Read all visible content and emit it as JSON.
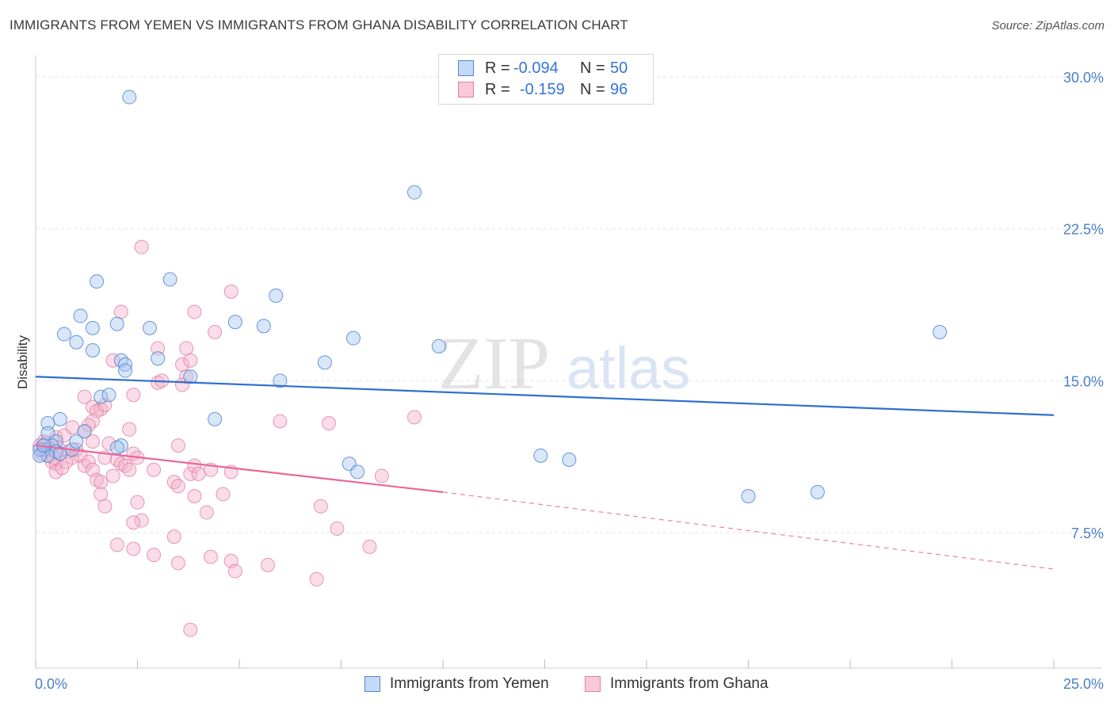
{
  "title": "IMMIGRANTS FROM YEMEN VS IMMIGRANTS FROM GHANA DISABILITY CORRELATION CHART",
  "source": "Source: ZipAtlas.com",
  "watermark": {
    "zip": "ZIP",
    "atlas": "atlas"
  },
  "legend": {
    "rows": [
      {
        "r_label": "R =",
        "r_value": "-0.094",
        "n_label": "N =",
        "n_value": "50"
      },
      {
        "r_label": "R =",
        "r_value": "-0.159",
        "n_label": "N =",
        "n_value": "96"
      }
    ]
  },
  "colors": {
    "yemen_fill": "#a9c8f0",
    "yemen_stroke": "#4f86d2",
    "yemen_line": "#2f6fd0",
    "ghana_fill": "#f5b3cb",
    "ghana_stroke": "#e07ea3",
    "ghana_line": "#e8679a",
    "grid": "#e3e3e3",
    "tick_text": "#4a7fc9"
  },
  "chart_data": {
    "type": "scatter",
    "title": "IMMIGRANTS FROM YEMEN VS IMMIGRANTS FROM GHANA DISABILITY CORRELATION CHART",
    "xlabel": "",
    "ylabel": "Disability",
    "xlim": [
      0,
      25
    ],
    "ylim": [
      0,
      31
    ],
    "x_tick_labels": [
      "0.0%",
      "25.0%"
    ],
    "y_ticks": [
      7.5,
      15.0,
      22.5,
      30.0
    ],
    "y_tick_labels": [
      "7.5%",
      "15.0%",
      "22.5%",
      "30.0%"
    ],
    "grid": true,
    "series": [
      {
        "name": "Immigrants from Yemen",
        "r": -0.094,
        "n": 50,
        "trend": {
          "x0": 0,
          "y0": 15.2,
          "x1": 25,
          "y1": 13.3
        },
        "points": [
          [
            2.3,
            29.0
          ],
          [
            9.3,
            24.3
          ],
          [
            1.5,
            19.9
          ],
          [
            3.3,
            20.0
          ],
          [
            5.9,
            19.2
          ],
          [
            1.1,
            18.2
          ],
          [
            2.0,
            17.8
          ],
          [
            2.8,
            17.6
          ],
          [
            4.9,
            17.9
          ],
          [
            5.6,
            17.7
          ],
          [
            0.7,
            17.3
          ],
          [
            1.4,
            17.6
          ],
          [
            1.0,
            16.9
          ],
          [
            7.8,
            17.1
          ],
          [
            9.9,
            16.7
          ],
          [
            1.4,
            16.5
          ],
          [
            2.1,
            16.0
          ],
          [
            2.2,
            15.8
          ],
          [
            3.0,
            16.1
          ],
          [
            7.1,
            15.9
          ],
          [
            2.2,
            15.5
          ],
          [
            3.8,
            15.2
          ],
          [
            6.0,
            15.0
          ],
          [
            1.6,
            14.2
          ],
          [
            1.8,
            14.3
          ],
          [
            1.2,
            12.5
          ],
          [
            0.6,
            13.1
          ],
          [
            0.3,
            12.9
          ],
          [
            0.3,
            12.4
          ],
          [
            4.4,
            13.1
          ],
          [
            0.5,
            12.0
          ],
          [
            0.4,
            11.8
          ],
          [
            0.2,
            11.6
          ],
          [
            0.5,
            11.5
          ],
          [
            0.3,
            11.3
          ],
          [
            0.1,
            11.6
          ],
          [
            0.1,
            11.3
          ],
          [
            0.2,
            11.8
          ],
          [
            0.6,
            11.4
          ],
          [
            0.9,
            11.6
          ],
          [
            1.0,
            12.0
          ],
          [
            2.1,
            11.8
          ],
          [
            2.0,
            11.7
          ],
          [
            7.7,
            10.9
          ],
          [
            7.9,
            10.5
          ],
          [
            12.4,
            11.3
          ],
          [
            13.1,
            11.1
          ],
          [
            17.5,
            9.3
          ],
          [
            19.2,
            9.5
          ],
          [
            22.2,
            17.4
          ]
        ]
      },
      {
        "name": "Immigrants from Ghana",
        "r": -0.159,
        "n": 96,
        "trend": {
          "x0": 0,
          "y0": 11.8,
          "x1": 10.0,
          "y1": 9.5,
          "x_dash_end": 25,
          "y_dash_end": 5.7
        },
        "points": [
          [
            2.6,
            21.6
          ],
          [
            4.8,
            19.4
          ],
          [
            2.1,
            18.4
          ],
          [
            3.9,
            18.4
          ],
          [
            4.4,
            17.4
          ],
          [
            3.0,
            16.6
          ],
          [
            3.7,
            16.6
          ],
          [
            1.9,
            16.0
          ],
          [
            3.6,
            15.8
          ],
          [
            3.8,
            16.0
          ],
          [
            3.7,
            15.2
          ],
          [
            3.0,
            14.9
          ],
          [
            3.1,
            15.0
          ],
          [
            3.6,
            14.8
          ],
          [
            2.4,
            14.3
          ],
          [
            1.2,
            14.2
          ],
          [
            1.4,
            13.7
          ],
          [
            1.6,
            13.6
          ],
          [
            1.5,
            13.5
          ],
          [
            1.7,
            13.8
          ],
          [
            1.4,
            13.0
          ],
          [
            1.3,
            12.8
          ],
          [
            1.2,
            12.5
          ],
          [
            0.9,
            12.7
          ],
          [
            2.3,
            12.6
          ],
          [
            6.0,
            13.0
          ],
          [
            7.2,
            12.9
          ],
          [
            9.3,
            13.2
          ],
          [
            0.5,
            12.2
          ],
          [
            0.7,
            12.3
          ],
          [
            1.4,
            12.0
          ],
          [
            1.8,
            11.9
          ],
          [
            3.5,
            11.8
          ],
          [
            0.2,
            12.0
          ],
          [
            0.2,
            11.5
          ],
          [
            0.3,
            11.3
          ],
          [
            0.4,
            11.0
          ],
          [
            0.5,
            10.9
          ],
          [
            0.5,
            10.5
          ],
          [
            0.6,
            11.4
          ],
          [
            0.8,
            11.5
          ],
          [
            0.9,
            11.2
          ],
          [
            1.0,
            11.6
          ],
          [
            1.1,
            11.3
          ],
          [
            1.2,
            10.8
          ],
          [
            1.3,
            11.0
          ],
          [
            1.4,
            10.6
          ],
          [
            1.5,
            10.1
          ],
          [
            1.6,
            10.0
          ],
          [
            1.7,
            11.2
          ],
          [
            1.9,
            10.3
          ],
          [
            2.0,
            11.1
          ],
          [
            2.1,
            10.9
          ],
          [
            2.2,
            10.8
          ],
          [
            2.3,
            10.6
          ],
          [
            2.4,
            11.4
          ],
          [
            2.5,
            11.2
          ],
          [
            2.9,
            10.6
          ],
          [
            3.4,
            10.0
          ],
          [
            3.5,
            9.8
          ],
          [
            3.8,
            10.4
          ],
          [
            3.9,
            10.8
          ],
          [
            4.0,
            10.4
          ],
          [
            4.3,
            10.6
          ],
          [
            4.8,
            10.5
          ],
          [
            8.5,
            10.3
          ],
          [
            2.5,
            9.0
          ],
          [
            1.6,
            9.4
          ],
          [
            1.7,
            8.8
          ],
          [
            3.9,
            9.3
          ],
          [
            4.6,
            9.4
          ],
          [
            4.2,
            8.5
          ],
          [
            2.6,
            8.1
          ],
          [
            2.4,
            8.0
          ],
          [
            7.0,
            8.8
          ],
          [
            7.4,
            7.7
          ],
          [
            3.4,
            7.3
          ],
          [
            2.0,
            6.9
          ],
          [
            2.4,
            6.7
          ],
          [
            8.2,
            6.8
          ],
          [
            2.9,
            6.4
          ],
          [
            3.5,
            6.0
          ],
          [
            4.3,
            6.3
          ],
          [
            4.8,
            6.1
          ],
          [
            4.9,
            5.6
          ],
          [
            5.7,
            5.9
          ],
          [
            6.9,
            5.2
          ],
          [
            3.8,
            2.7
          ],
          [
            0.1,
            11.8
          ],
          [
            0.15,
            11.4
          ],
          [
            0.25,
            11.9
          ],
          [
            0.35,
            11.6
          ],
          [
            0.45,
            11.2
          ],
          [
            0.55,
            11.7
          ],
          [
            0.65,
            10.7
          ],
          [
            0.75,
            11.0
          ]
        ]
      }
    ]
  },
  "bottom_legend": {
    "items": [
      "Immigrants from Yemen",
      "Immigrants from Ghana"
    ]
  }
}
